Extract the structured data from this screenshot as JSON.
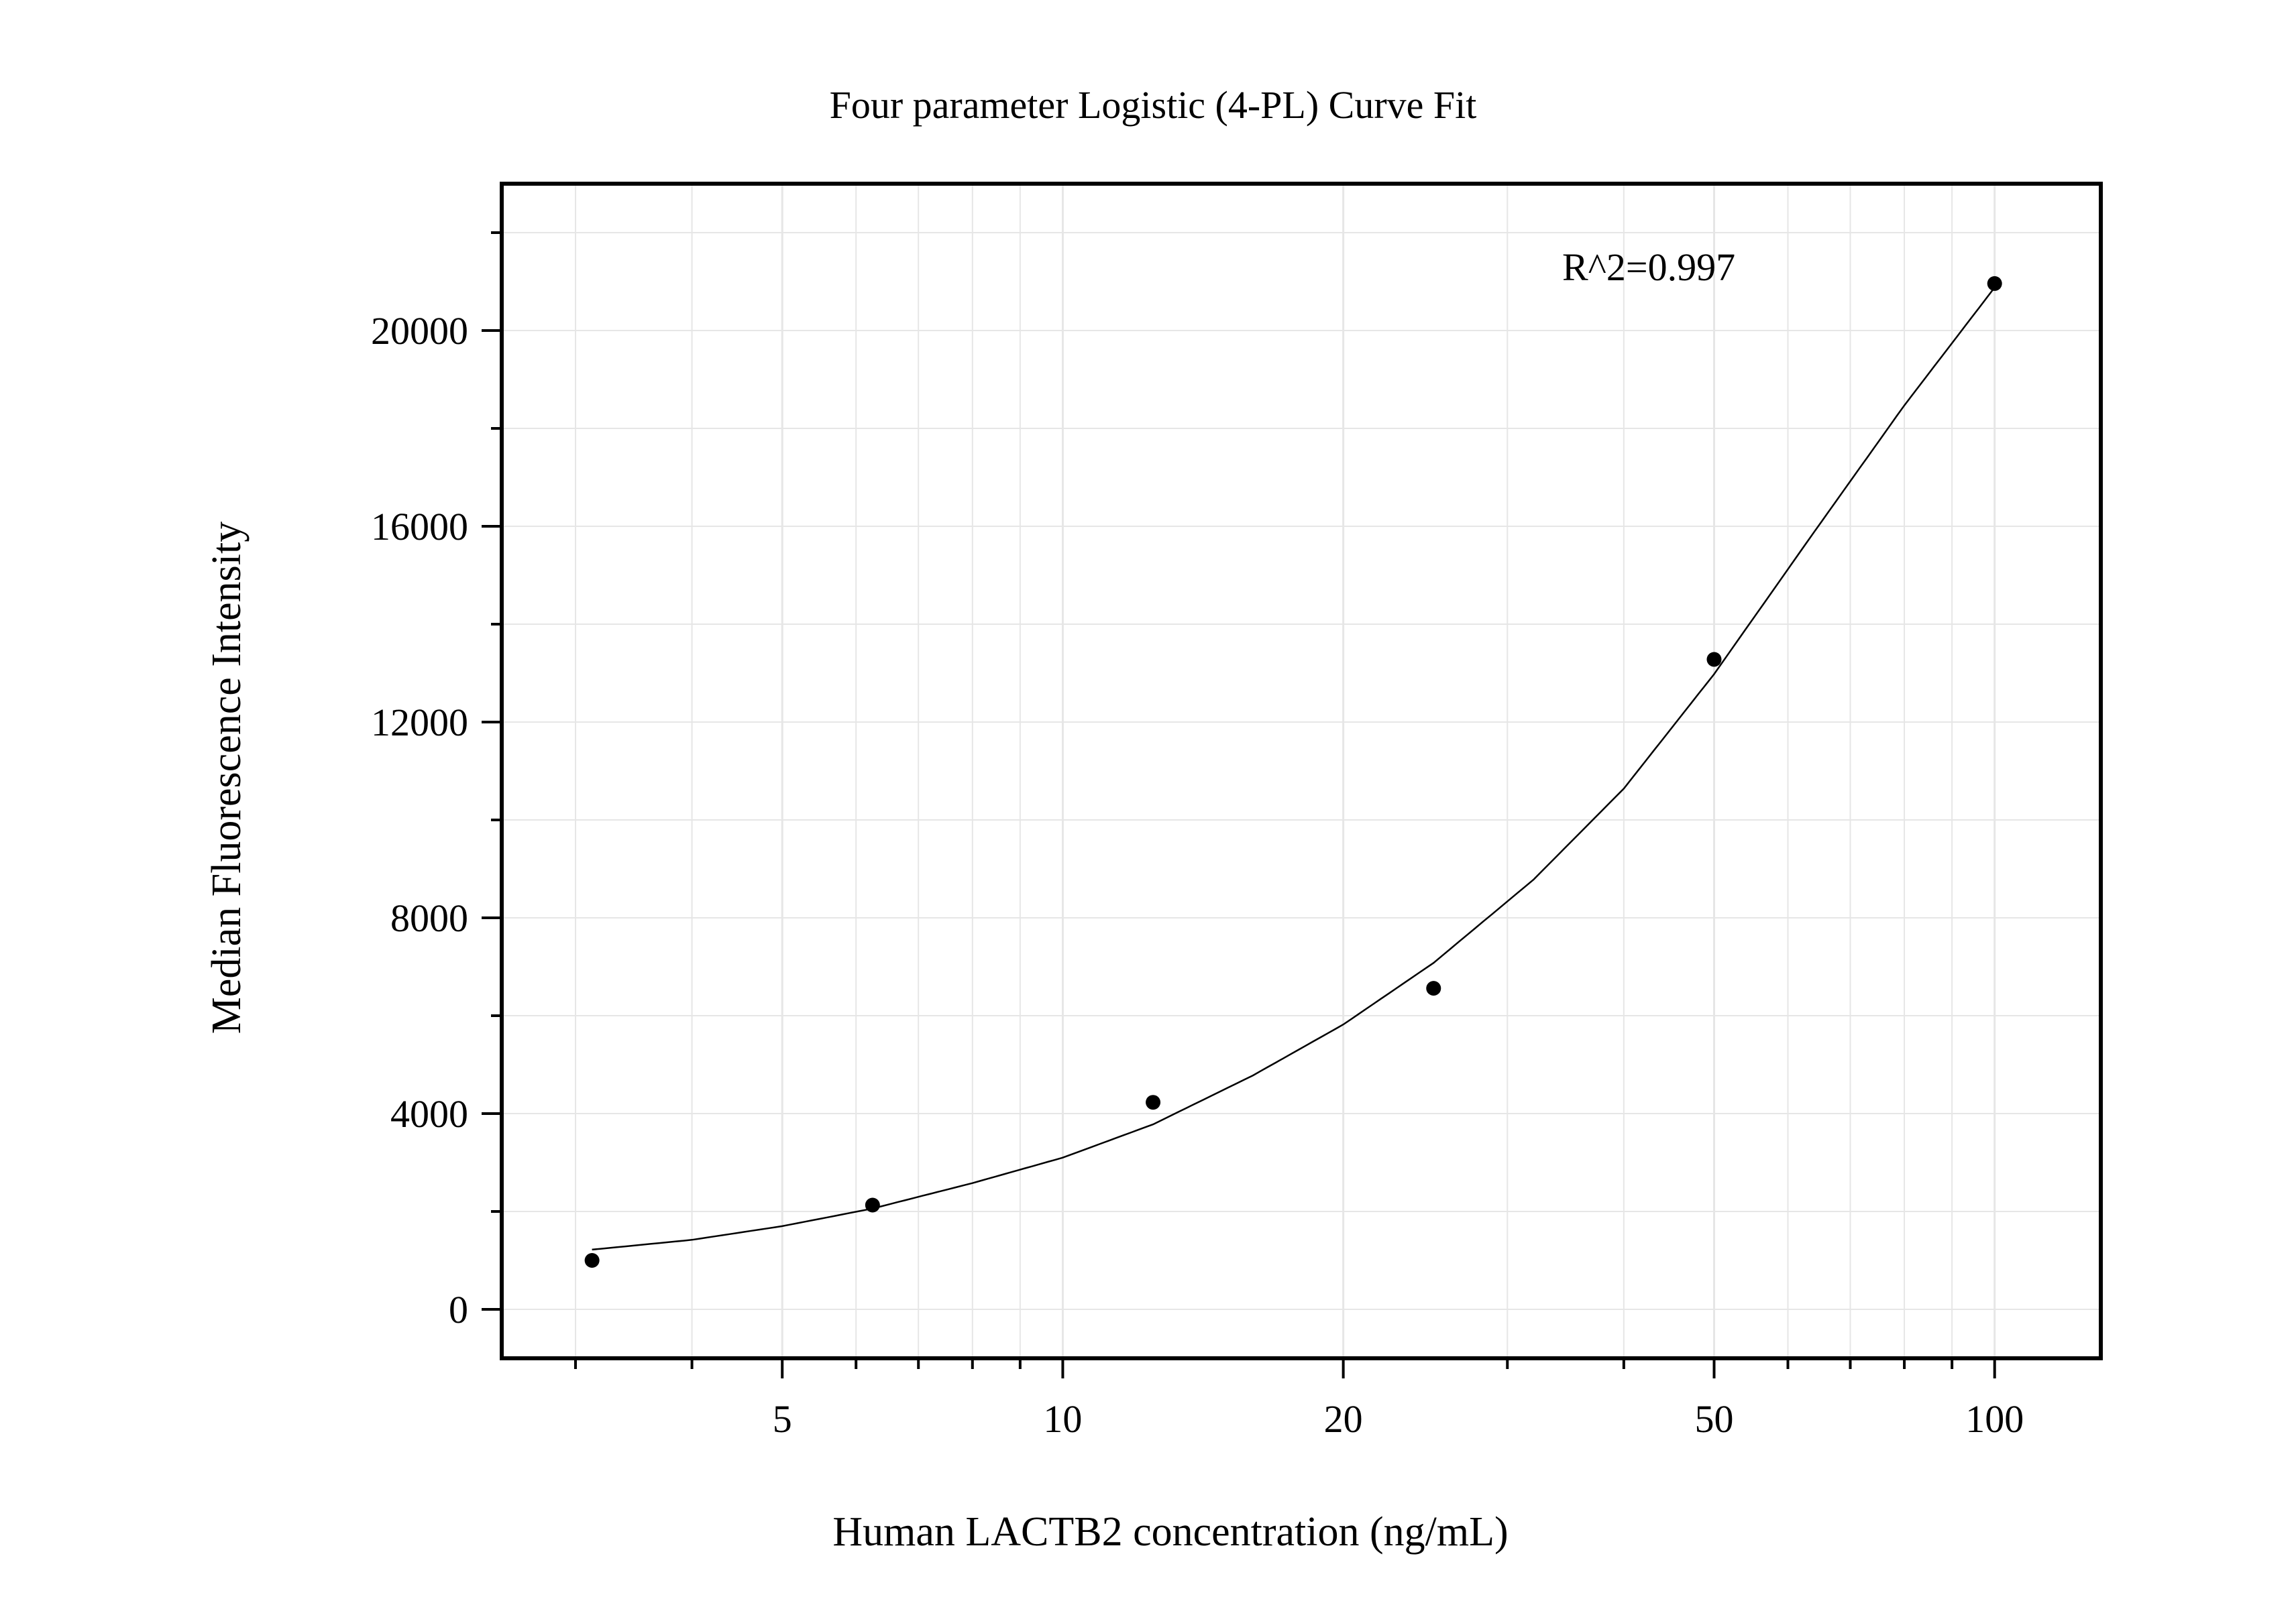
{
  "chart_data": {
    "type": "scatter",
    "title": "Four parameter Logistic (4-PL) Curve Fit",
    "xlabel": "Human LACTB2 concentration (ng/mL)",
    "ylabel": "Median Fluorescence Intensity",
    "x_scale": "log",
    "xlim": [
      2.5,
      130
    ],
    "ylim": [
      -1000,
      23000
    ],
    "x_ticks": [
      5,
      10,
      20,
      50,
      100
    ],
    "x_tick_labels": [
      "5",
      "10",
      "20",
      "50",
      "100"
    ],
    "y_ticks": [
      0,
      4000,
      8000,
      12000,
      16000,
      20000
    ],
    "y_tick_labels": [
      "0",
      "4000",
      "8000",
      "12000",
      "16000",
      "20000"
    ],
    "grid": true,
    "legend": "none",
    "annotation": "R^2=0.997",
    "series": [
      {
        "x": [
          3.125,
          6.25,
          12.5,
          25,
          50,
          100
        ],
        "y": [
          1000,
          2130,
          4230,
          6560,
          13280,
          20960
        ]
      }
    ],
    "fit_curve": {
      "model": "4PL",
      "x": [
        3.125,
        4,
        5,
        6.25,
        8,
        10,
        12.5,
        16,
        20,
        25,
        32,
        40,
        50,
        64,
        80,
        100
      ],
      "y": [
        1220,
        1420,
        1700,
        2060,
        2580,
        3100,
        3780,
        4780,
        5820,
        7080,
        8780,
        10640,
        12980,
        15880,
        18470,
        20880
      ]
    },
    "colors": {
      "marker": "#000000",
      "curve": "#000000",
      "grid": "#e6e6e6",
      "frame": "#000000"
    }
  }
}
